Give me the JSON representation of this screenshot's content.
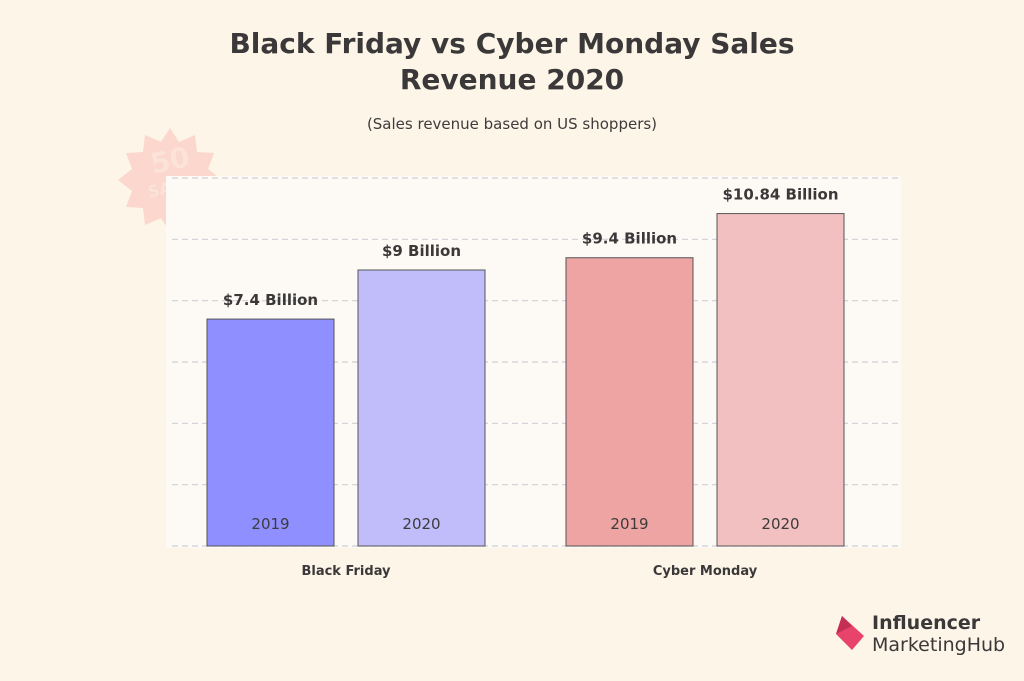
{
  "chart_data": {
    "type": "bar",
    "title_line1": "Black Friday vs Cyber Monday Sales",
    "title_line2": "Revenue 2020",
    "subtitle": "(Sales revenue based on US shoppers)",
    "groups": [
      {
        "name": "Black Friday",
        "bars": [
          {
            "year": "2019",
            "value": 7.4,
            "label": "$7.4 Billion",
            "color": "#8f8fff"
          },
          {
            "year": "2020",
            "value": 9.0,
            "label": "$9 Billion",
            "color": "#c1bdfb"
          }
        ]
      },
      {
        "name": "Cyber Monday",
        "bars": [
          {
            "year": "2019",
            "value": 9.4,
            "label": "$9.4 Billion",
            "color": "#efa4a4"
          },
          {
            "year": "2020",
            "value": 10.84,
            "label": "$10.84 Billion",
            "color": "#f2c0c0"
          }
        ]
      }
    ],
    "ylim": [
      0,
      12
    ],
    "grid": true,
    "gridline_color": "#cfcfd6"
  },
  "badge": {
    "number": "50",
    "text": "SALE"
  },
  "logo": {
    "line1": "Influencer",
    "line2": "MarketingHub"
  }
}
